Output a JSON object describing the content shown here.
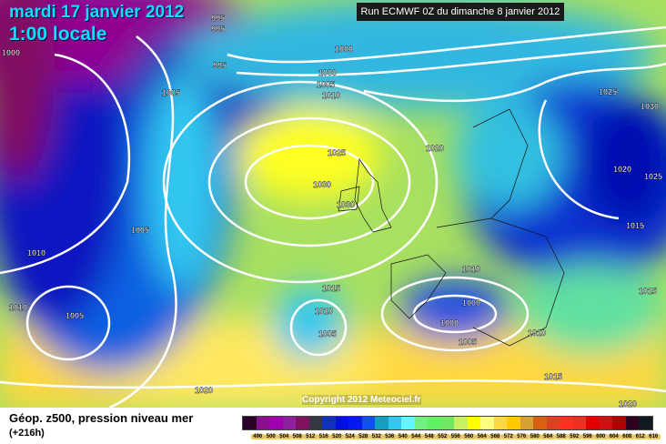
{
  "header": {
    "date": "mardi 17 janvier 2012",
    "time": "1:00 locale",
    "run": "Run ECMWF 0Z du dimanche 8 janvier 2012",
    "copyright": "Copyright 2012 Meteociel.fr"
  },
  "footer": {
    "caption": "Géop. z500, pression niveau mer",
    "lead": "(+216h)"
  },
  "legend": {
    "labels": [
      "496",
      "500",
      "504",
      "508",
      "512",
      "516",
      "520",
      "524",
      "528",
      "532",
      "536",
      "540",
      "544",
      "548",
      "552",
      "556",
      "560",
      "564",
      "568",
      "572",
      "576",
      "580",
      "584",
      "588",
      "592",
      "596",
      "600",
      "604",
      "608",
      "612",
      "616"
    ],
    "colors": [
      "#2a0028",
      "#8a1090",
      "#a000b0",
      "#9020a0",
      "#801060",
      "#333844",
      "#1030c0",
      "#0010e0",
      "#0818f0",
      "#1050f0",
      "#10a0c0",
      "#30c8f0",
      "#60f8ff",
      "#70f080",
      "#60f060",
      "#70e860",
      "#c8f060",
      "#ffff00",
      "#ffff80",
      "#ffd840",
      "#ffc800",
      "#d8a030",
      "#d86010",
      "#e04020",
      "#ff3020",
      "#ee3020",
      "#e00000",
      "#d01010",
      "#b00000",
      "#300020",
      "#101820"
    ]
  },
  "isobars": [
    "995",
    "995",
    "1000",
    "995",
    "1000",
    "1000",
    "1005",
    "1010",
    "1005",
    "1025",
    "1030",
    "1020",
    "1025",
    "1020",
    "1025",
    "1030",
    "1030",
    "1015",
    "1005",
    "1010",
    "1010",
    "1015",
    "1015",
    "1010",
    "1005",
    "1010",
    "1000",
    "1000",
    "1005",
    "1005",
    "1010",
    "1015",
    "1020",
    "1020"
  ],
  "colors": {
    "title": "#00e5ff",
    "isobar": "#ffffff"
  }
}
